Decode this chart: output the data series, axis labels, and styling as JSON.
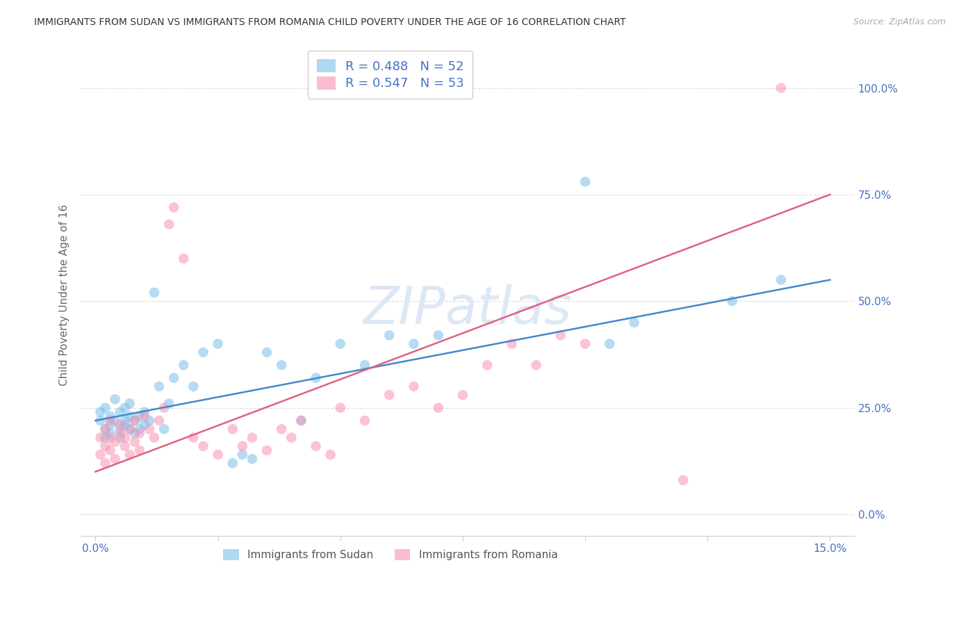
{
  "title": "IMMIGRANTS FROM SUDAN VS IMMIGRANTS FROM ROMANIA CHILD POVERTY UNDER THE AGE OF 16 CORRELATION CHART",
  "source": "Source: ZipAtlas.com",
  "ylabel": "Child Poverty Under the Age of 16",
  "xlim": [
    0.0,
    0.15
  ],
  "ylim": [
    -0.05,
    1.05
  ],
  "yticks": [
    0.0,
    0.25,
    0.5,
    0.75,
    1.0
  ],
  "ytick_labels": [
    "0.0%",
    "25.0%",
    "50.0%",
    "75.0%",
    "100.0%"
  ],
  "xticks": [
    0.0,
    0.025,
    0.05,
    0.075,
    0.1,
    0.125,
    0.15
  ],
  "xtick_labels": [
    "0.0%",
    "",
    "",
    "",
    "",
    "",
    "15.0%"
  ],
  "sudan_R": 0.488,
  "sudan_N": 52,
  "romania_R": 0.547,
  "romania_N": 53,
  "sudan_color": "#7bbfea",
  "romania_color": "#f892b0",
  "sudan_line_color": "#4488cc",
  "romania_line_color": "#e06080",
  "background_color": "#ffffff",
  "watermark": "ZIPatlas",
  "watermark_color": "#dce8f5",
  "grid_color": "#dddddd",
  "axis_label_color": "#4472c4",
  "sudan_line": [
    0.0,
    0.15,
    0.22,
    0.55
  ],
  "romania_line": [
    0.0,
    0.15,
    0.1,
    0.75
  ],
  "sudan_x": [
    0.001,
    0.001,
    0.002,
    0.002,
    0.002,
    0.003,
    0.003,
    0.003,
    0.004,
    0.004,
    0.005,
    0.005,
    0.005,
    0.006,
    0.006,
    0.006,
    0.007,
    0.007,
    0.007,
    0.008,
    0.008,
    0.009,
    0.009,
    0.01,
    0.01,
    0.011,
    0.012,
    0.013,
    0.014,
    0.015,
    0.016,
    0.018,
    0.02,
    0.022,
    0.025,
    0.028,
    0.03,
    0.032,
    0.035,
    0.038,
    0.042,
    0.045,
    0.05,
    0.055,
    0.06,
    0.065,
    0.07,
    0.1,
    0.105,
    0.11,
    0.13,
    0.14
  ],
  "sudan_y": [
    0.22,
    0.24,
    0.2,
    0.25,
    0.18,
    0.21,
    0.23,
    0.19,
    0.22,
    0.27,
    0.2,
    0.18,
    0.24,
    0.21,
    0.25,
    0.22,
    0.2,
    0.23,
    0.26,
    0.22,
    0.19,
    0.2,
    0.23,
    0.24,
    0.21,
    0.22,
    0.52,
    0.3,
    0.2,
    0.26,
    0.32,
    0.35,
    0.3,
    0.38,
    0.4,
    0.12,
    0.14,
    0.13,
    0.38,
    0.35,
    0.22,
    0.32,
    0.4,
    0.35,
    0.42,
    0.4,
    0.42,
    0.78,
    0.4,
    0.45,
    0.5,
    0.55
  ],
  "romania_x": [
    0.001,
    0.001,
    0.002,
    0.002,
    0.002,
    0.003,
    0.003,
    0.003,
    0.004,
    0.004,
    0.005,
    0.005,
    0.006,
    0.006,
    0.007,
    0.007,
    0.008,
    0.008,
    0.009,
    0.009,
    0.01,
    0.011,
    0.012,
    0.013,
    0.014,
    0.015,
    0.016,
    0.018,
    0.02,
    0.022,
    0.025,
    0.028,
    0.03,
    0.032,
    0.035,
    0.038,
    0.04,
    0.042,
    0.045,
    0.048,
    0.05,
    0.055,
    0.06,
    0.065,
    0.07,
    0.075,
    0.08,
    0.085,
    0.09,
    0.095,
    0.1,
    0.12,
    0.14
  ],
  "romania_y": [
    0.18,
    0.14,
    0.16,
    0.12,
    0.2,
    0.15,
    0.18,
    0.22,
    0.17,
    0.13,
    0.19,
    0.21,
    0.16,
    0.18,
    0.14,
    0.2,
    0.17,
    0.22,
    0.15,
    0.19,
    0.23,
    0.2,
    0.18,
    0.22,
    0.25,
    0.68,
    0.72,
    0.6,
    0.18,
    0.16,
    0.14,
    0.2,
    0.16,
    0.18,
    0.15,
    0.2,
    0.18,
    0.22,
    0.16,
    0.14,
    0.25,
    0.22,
    0.28,
    0.3,
    0.25,
    0.28,
    0.35,
    0.4,
    0.35,
    0.42,
    0.4,
    0.08,
    1.0
  ]
}
